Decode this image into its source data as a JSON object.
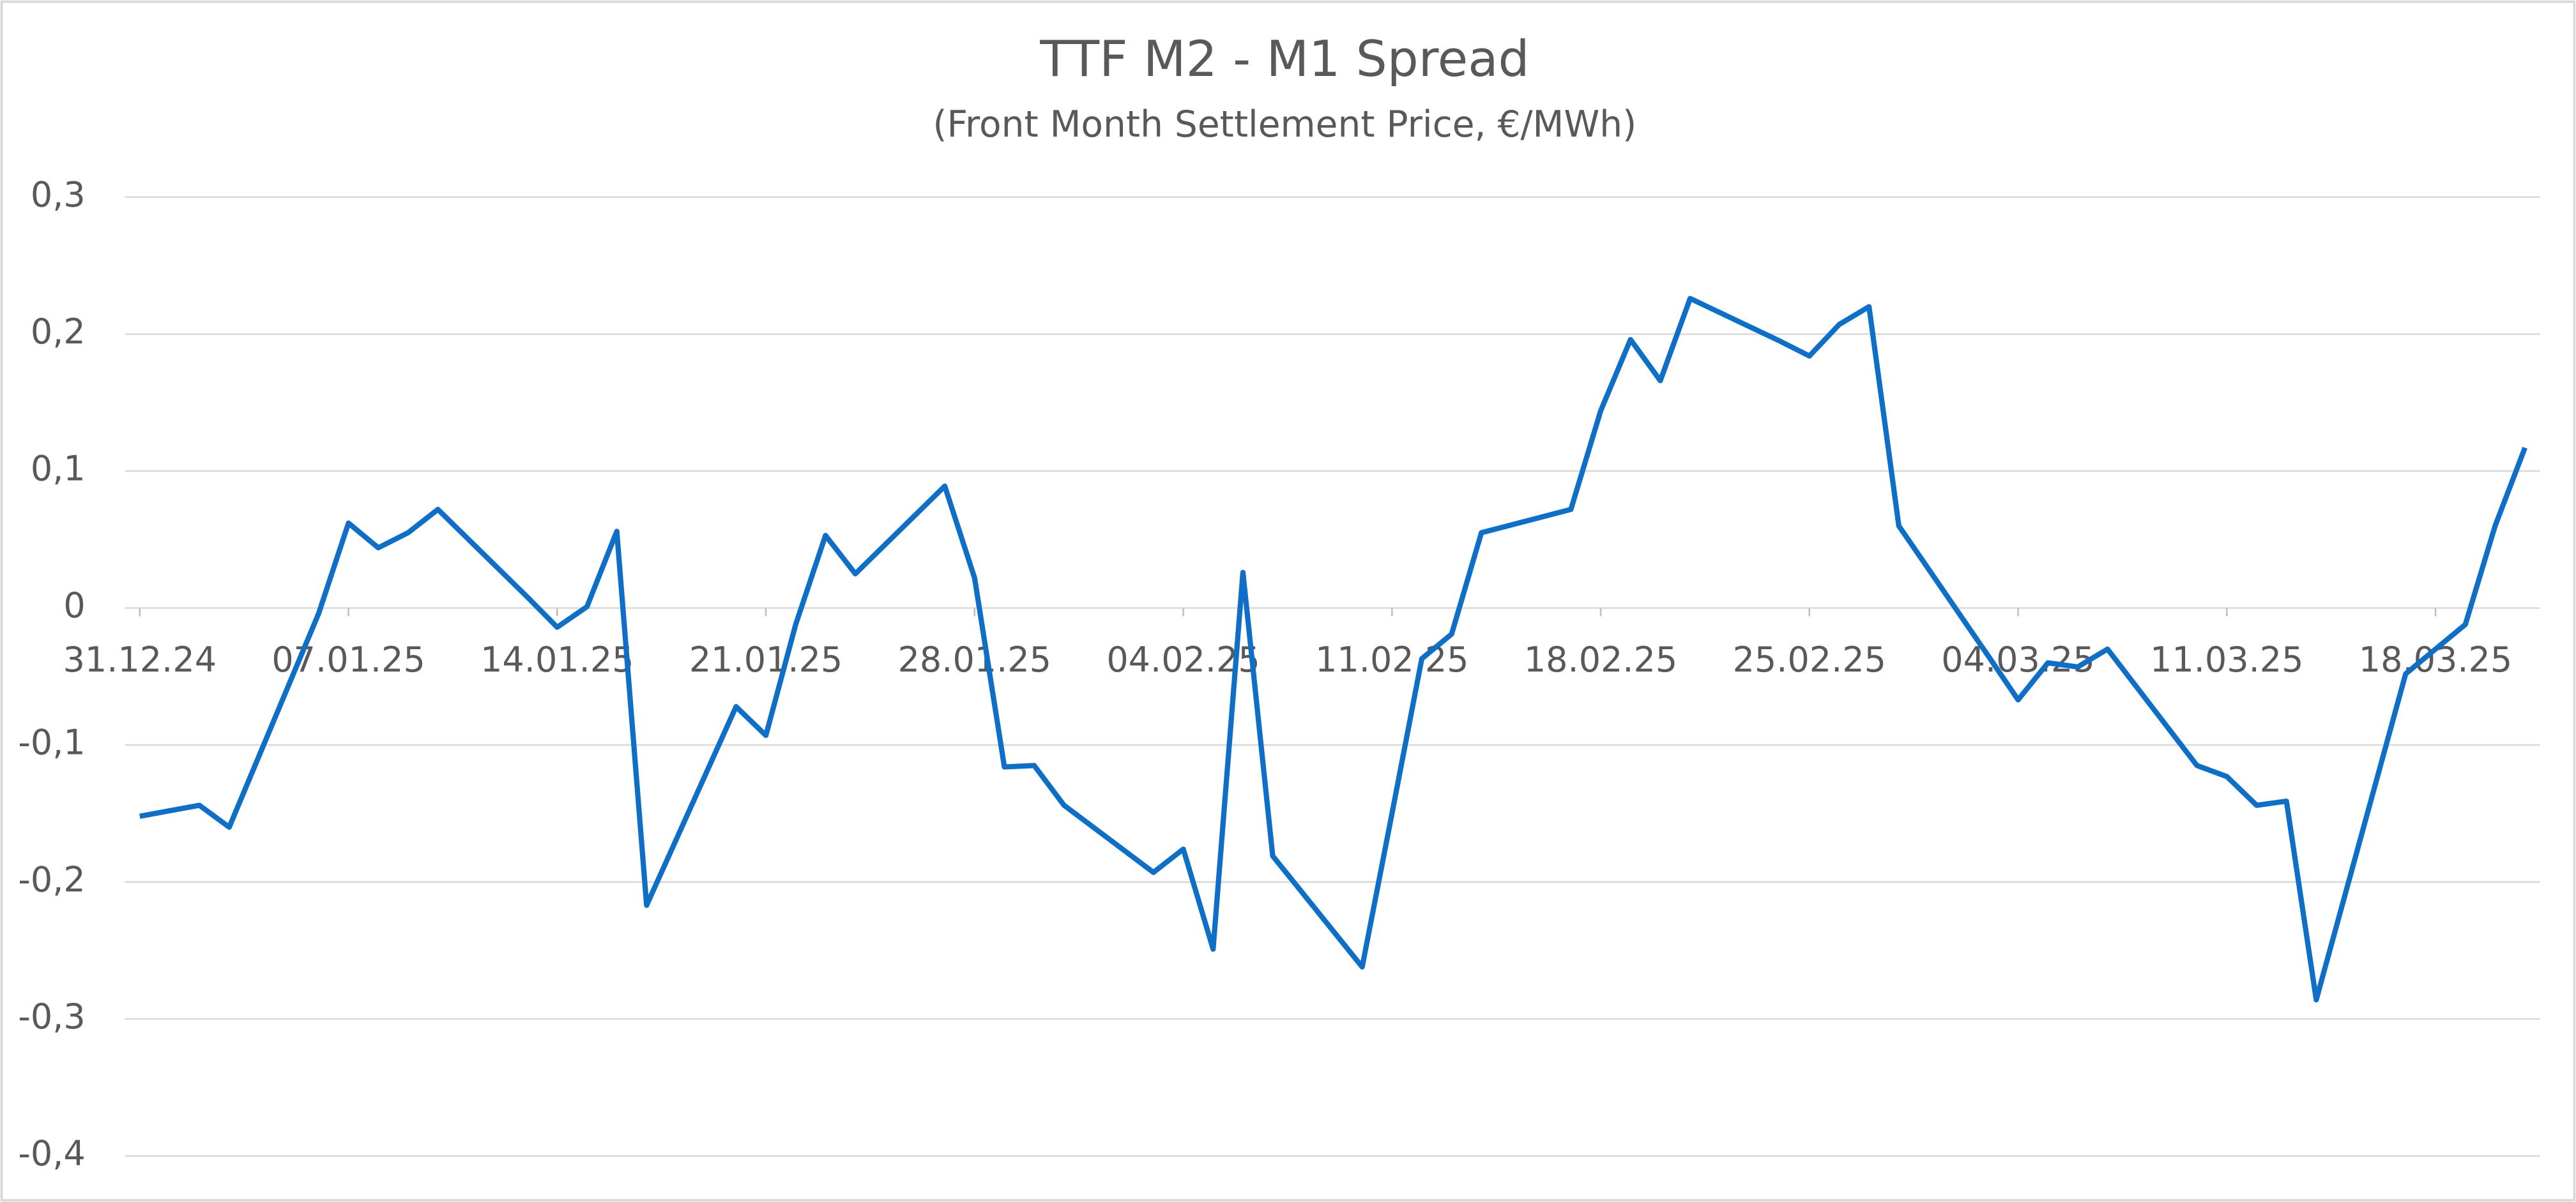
{
  "chart_data": {
    "type": "line",
    "title": "TTF M2 - M1 Spread",
    "subtitle": "(Front Month Settlement Price, €/MWh)",
    "x": [
      "31.12.24",
      "02.01.25",
      "03.01.25",
      "06.01.25",
      "07.01.25",
      "08.01.25",
      "09.01.25",
      "10.01.25",
      "13.01.25",
      "14.01.25",
      "15.01.25",
      "16.01.25",
      "17.01.25",
      "20.01.25",
      "21.01.25",
      "22.01.25",
      "23.01.25",
      "24.01.25",
      "27.01.25",
      "28.01.25",
      "29.01.25",
      "30.01.25",
      "31.01.25",
      "03.02.25",
      "04.02.25",
      "05.02.25",
      "06.02.25",
      "07.02.25",
      "10.02.25",
      "11.02.25",
      "12.02.25",
      "13.02.25",
      "14.02.25",
      "17.02.25",
      "18.02.25",
      "19.02.25",
      "20.02.25",
      "21.02.25",
      "24.02.25",
      "25.02.25",
      "26.02.25",
      "27.02.25",
      "28.02.25",
      "03.03.25",
      "04.03.25",
      "05.03.25",
      "06.03.25",
      "07.03.25",
      "10.03.25",
      "11.03.25",
      "12.03.25",
      "13.03.25",
      "14.03.25",
      "17.03.25",
      "18.03.25",
      "19.03.25",
      "20.03.25",
      "21.03.25"
    ],
    "series": [
      {
        "name": "TTF M2 - M1 Spread",
        "color": "#0f6fc6",
        "values": [
          -0.152,
          -0.144,
          -0.16,
          -0.004,
          0.062,
          0.044,
          0.055,
          0.072,
          0.008,
          -0.014,
          0.001,
          0.056,
          -0.217,
          -0.072,
          -0.093,
          -0.012,
          0.053,
          0.025,
          0.089,
          0.022,
          -0.116,
          -0.115,
          -0.144,
          -0.193,
          -0.176,
          -0.249,
          0.026,
          -0.181,
          -0.262,
          -0.15,
          -0.037,
          -0.019,
          0.055,
          0.072,
          0.144,
          0.196,
          0.166,
          0.226,
          0.195,
          0.184,
          0.207,
          0.22,
          0.06,
          -0.035,
          -0.067,
          -0.04,
          -0.043,
          -0.03,
          -0.115,
          -0.123,
          -0.144,
          -0.141,
          -0.286,
          -0.048,
          -0.03,
          -0.012,
          0.06,
          0.117
        ]
      }
    ],
    "xlim": [
      "31.12.24",
      "21.03.25"
    ],
    "xticks": [
      "31.12.24",
      "07.01.25",
      "14.01.25",
      "21.01.25",
      "28.01.25",
      "04.02.25",
      "11.02.25",
      "18.02.25",
      "25.02.25",
      "04.03.25",
      "11.03.25",
      "18.03.25"
    ],
    "ylim": [
      -0.4,
      0.3
    ],
    "yticks": [
      {
        "value": -0.4,
        "label": "-0,4"
      },
      {
        "value": -0.3,
        "label": "-0,3"
      },
      {
        "value": -0.2,
        "label": "-0,2"
      },
      {
        "value": -0.1,
        "label": "-0,1"
      },
      0,
      {
        "value": 0.1,
        "label": "0,1"
      },
      {
        "value": 0.2,
        "label": "0,2"
      },
      {
        "value": 0.3,
        "label": "0,3"
      }
    ],
    "grid": true
  }
}
